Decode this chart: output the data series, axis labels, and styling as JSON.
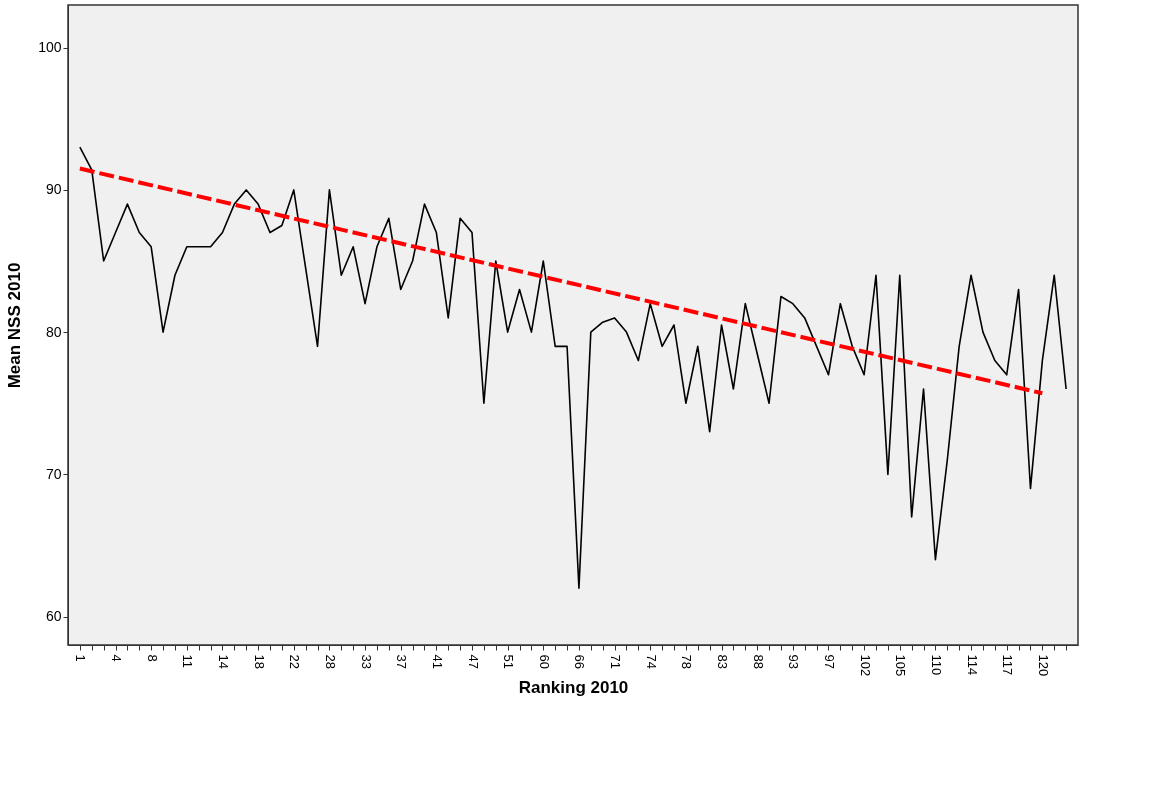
{
  "chart_data": {
    "type": "line",
    "xlabel": "Ranking 2010",
    "ylabel": "Mean NSS 2010",
    "categories": [
      "1",
      null,
      null,
      "4",
      null,
      null,
      "8",
      null,
      null,
      "11",
      null,
      null,
      "14",
      null,
      null,
      "18",
      null,
      null,
      "22",
      null,
      null,
      "28",
      null,
      null,
      "33",
      null,
      null,
      "37",
      null,
      null,
      "41",
      null,
      null,
      "47",
      null,
      null,
      "51",
      null,
      null,
      "60",
      null,
      null,
      "66",
      null,
      null,
      "71",
      null,
      null,
      "74",
      null,
      null,
      "78",
      null,
      null,
      "83",
      null,
      null,
      "88",
      null,
      null,
      "93",
      null,
      null,
      "97",
      null,
      null,
      "102",
      null,
      null,
      "105",
      null,
      null,
      "110",
      null,
      null,
      "114",
      null,
      null,
      "117",
      null,
      null,
      "120",
      null,
      null
    ],
    "series": [
      {
        "color": "#000000",
        "values": [
          93,
          91.4,
          85,
          87,
          89,
          87,
          86,
          80,
          84,
          86,
          86,
          86,
          87,
          89,
          90,
          89,
          87,
          87.5,
          90,
          84.5,
          79,
          90,
          84,
          86,
          82,
          86,
          88,
          83,
          85,
          89,
          87,
          81,
          88,
          87,
          75,
          85,
          80,
          83,
          80,
          85,
          79,
          79,
          62,
          80,
          80.7,
          81,
          80,
          78,
          82,
          79,
          80.5,
          75,
          79,
          73,
          80.5,
          76,
          82,
          78.5,
          75,
          82.5,
          82,
          81,
          79,
          77,
          82,
          79,
          77,
          84,
          70,
          84,
          67,
          76,
          64,
          71,
          79,
          84,
          80,
          78,
          77,
          83,
          69,
          78,
          84,
          76
        ]
      },
      {
        "type": "line",
        "color": "#ff0000",
        "line_style": "dashed",
        "x": [
          "1",
          "120"
        ],
        "values": [
          91.5,
          75.7
        ]
      }
    ],
    "ylim": [
      58,
      103
    ],
    "yticks": [
      60,
      70,
      80,
      90,
      100
    ],
    "grid": false
  }
}
